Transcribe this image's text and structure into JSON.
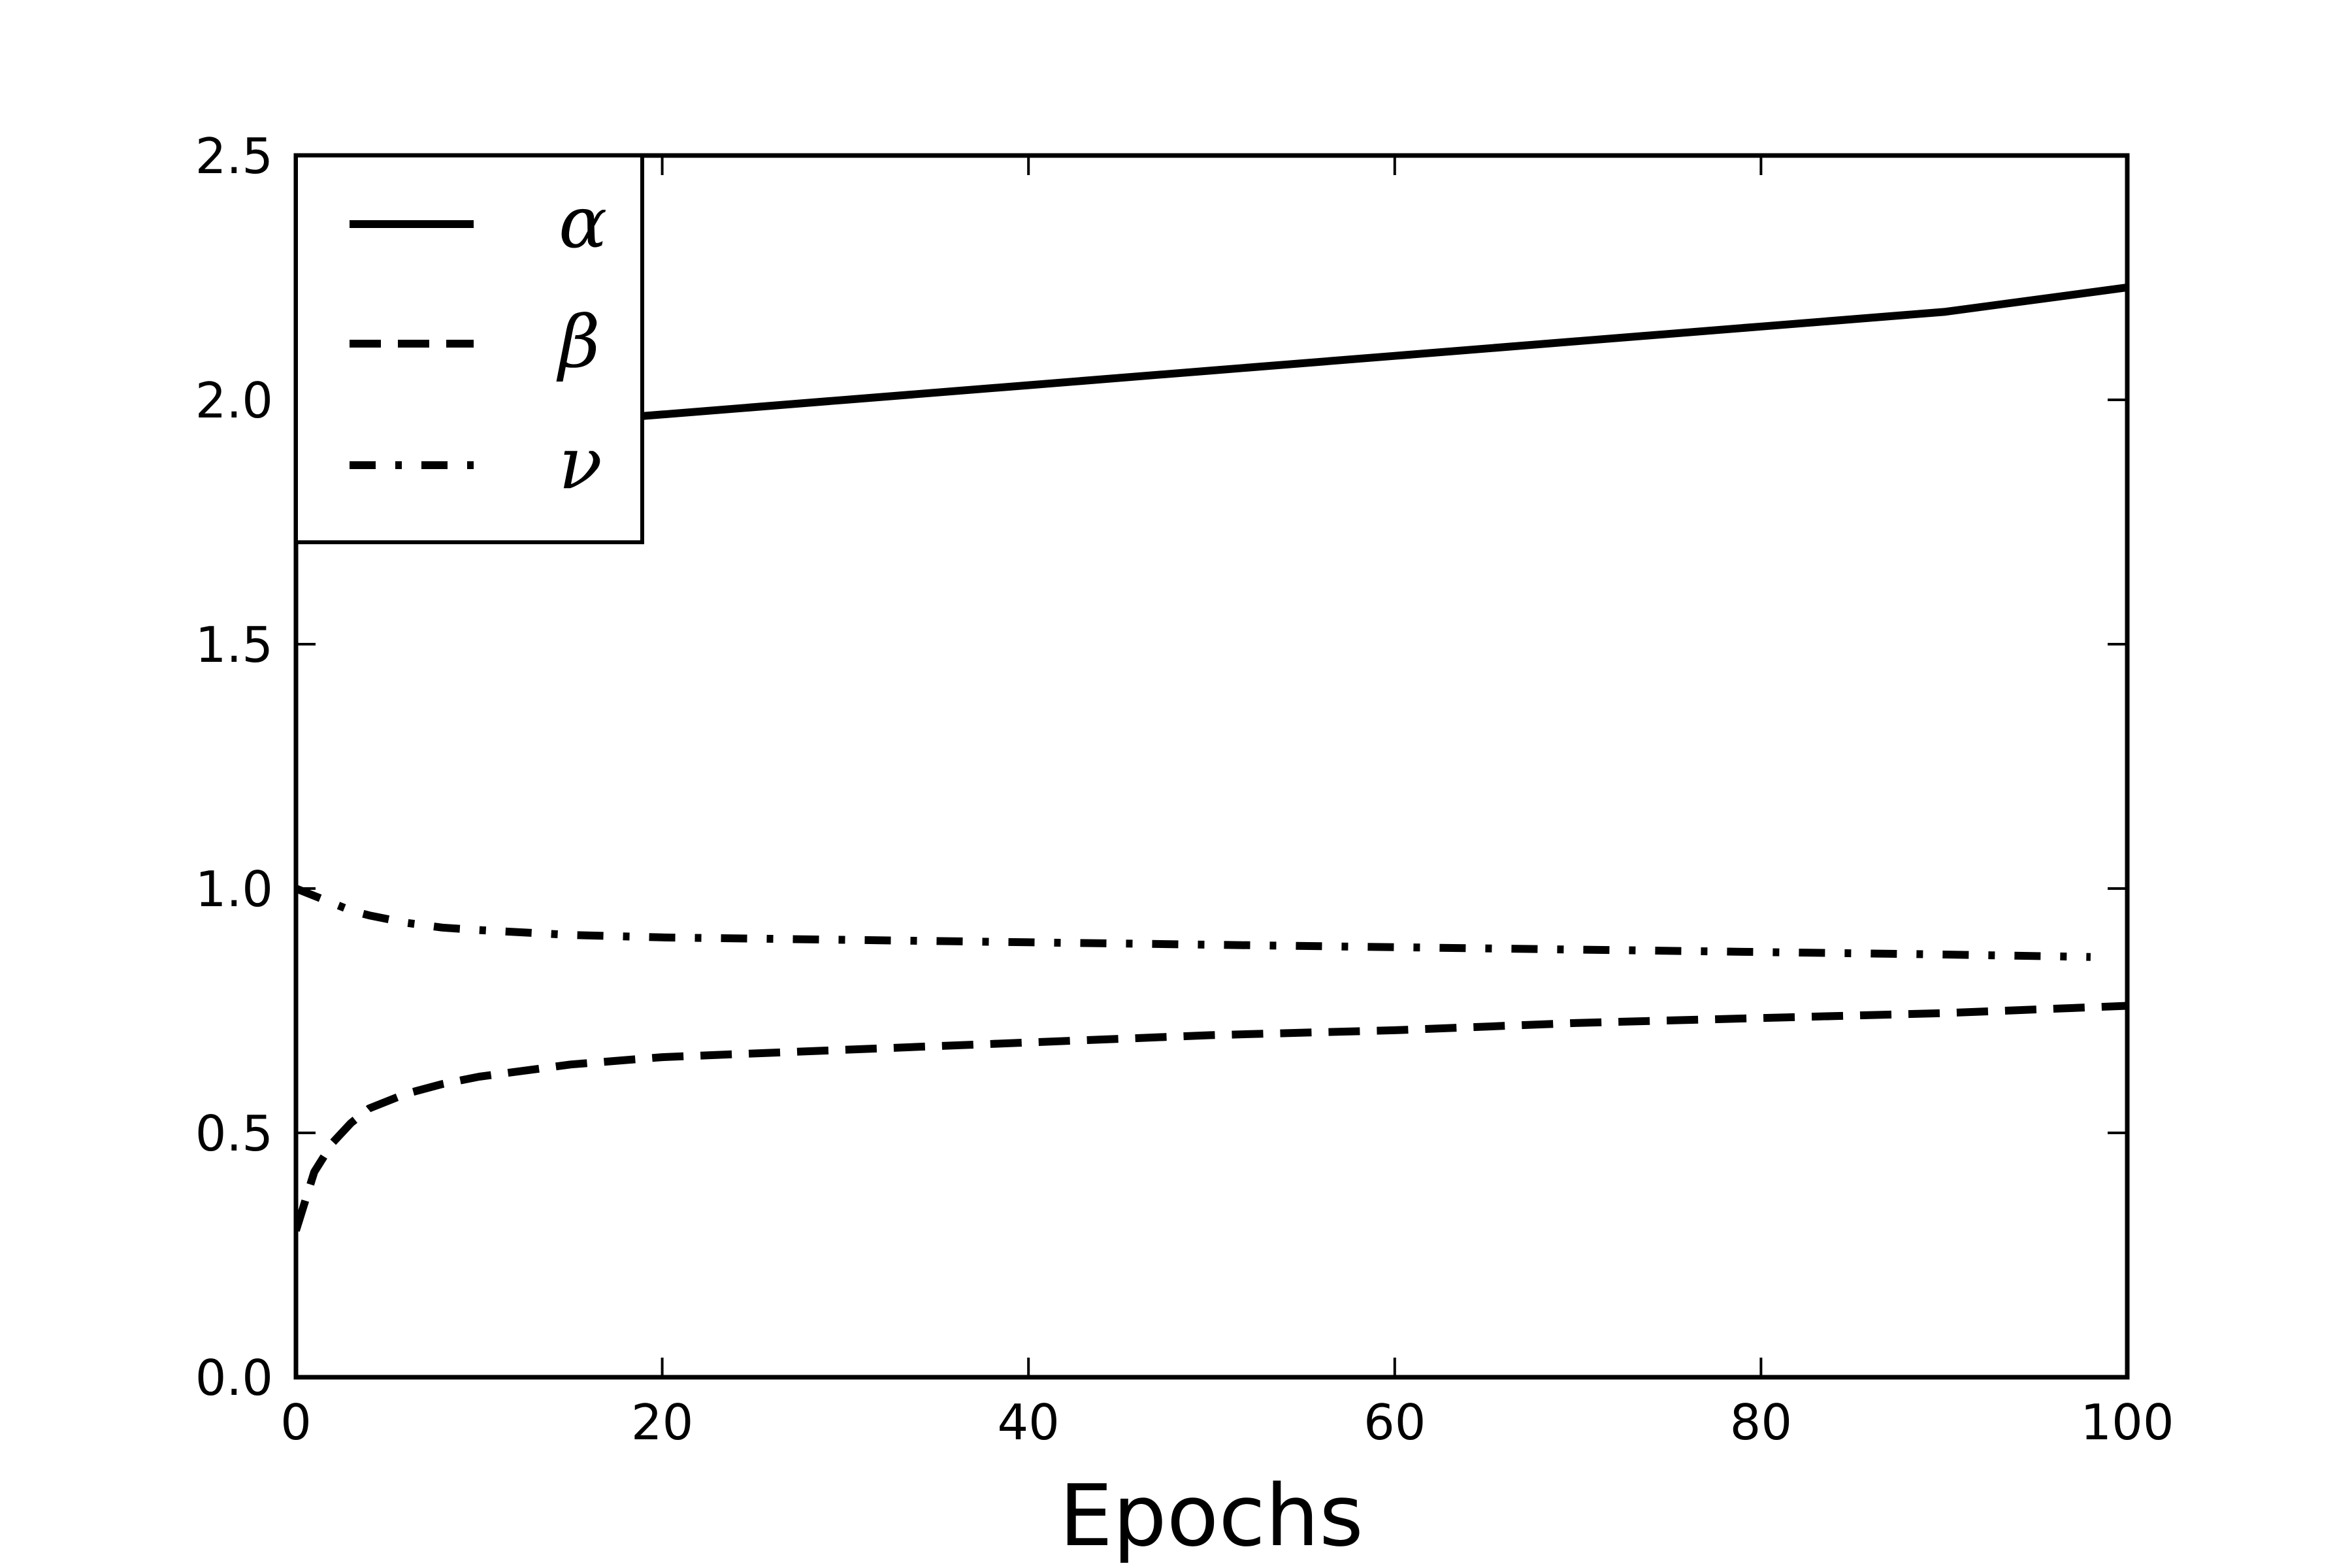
{
  "chart_data": {
    "type": "line",
    "title": "",
    "xlabel": "Epochs",
    "ylabel": "",
    "xlim": [
      0,
      100
    ],
    "ylim": [
      0,
      2.5
    ],
    "xticks": [
      0,
      20,
      40,
      60,
      80,
      100
    ],
    "xtick_labels": [
      "0",
      "20",
      "40",
      "60",
      "80",
      "100"
    ],
    "yticks": [
      0,
      0.5,
      1.0,
      1.5,
      2.0,
      2.5
    ],
    "ytick_labels": [
      "0.0",
      "0.5",
      "1.0",
      "1.5",
      "2.0",
      "2.5"
    ],
    "grid": false,
    "legend_position": "upper-left",
    "series": [
      {
        "name": "α",
        "style": "solid",
        "color": "#000000",
        "x": [
          0,
          10,
          20,
          30,
          40,
          50,
          60,
          70,
          80,
          90,
          100
        ],
        "y": [
          1.9,
          1.94,
          1.97,
          2.0,
          2.03,
          2.06,
          2.09,
          2.12,
          2.15,
          2.18,
          2.23
        ]
      },
      {
        "name": "β",
        "style": "dashed",
        "color": "#000000",
        "x": [
          0,
          1,
          2,
          3,
          4,
          6,
          8,
          10,
          15,
          20,
          30,
          40,
          50,
          60,
          70,
          80,
          90,
          100
        ],
        "y": [
          0.3,
          0.42,
          0.48,
          0.52,
          0.55,
          0.58,
          0.6,
          0.615,
          0.64,
          0.655,
          0.67,
          0.685,
          0.7,
          0.71,
          0.725,
          0.735,
          0.745,
          0.76
        ]
      },
      {
        "name": "ν",
        "style": "dashdot",
        "color": "#000000",
        "x": [
          0,
          1,
          2,
          3,
          4,
          6,
          8,
          10,
          15,
          20,
          30,
          40,
          50,
          60,
          70,
          80,
          90,
          98
        ],
        "y": [
          1.0,
          0.985,
          0.97,
          0.955,
          0.945,
          0.93,
          0.92,
          0.915,
          0.905,
          0.9,
          0.895,
          0.89,
          0.885,
          0.88,
          0.875,
          0.87,
          0.865,
          0.86
        ]
      }
    ]
  }
}
